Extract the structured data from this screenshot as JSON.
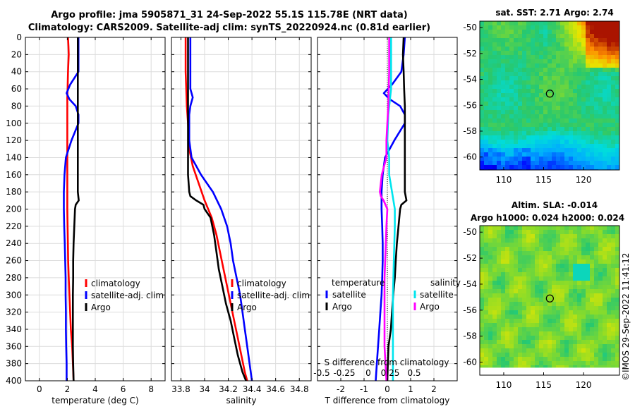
{
  "header": {
    "title_line1": "Argo profile: jma 5905871_31 24-Sep-2022 55.1S  115.78E (NRT data)",
    "title_line2": "Climatology: CARS2009. Satellite-adj clim: synTS_20220924.nc (0.81d earlier)"
  },
  "footer": {
    "credit": "©IMOS 29-Sep-2022 11:41:12"
  },
  "colors": {
    "climatology": "#ff0000",
    "satellite": "#0000ff",
    "argo": "#000000",
    "sat_salinity": "#00e5ee",
    "argo_salinity": "#ff00ff"
  },
  "depth_axis": {
    "ticks": [
      "0",
      "20",
      "40",
      "60",
      "80",
      "100",
      "120",
      "140",
      "160",
      "180",
      "200",
      "220",
      "240",
      "260",
      "280",
      "300",
      "320",
      "340",
      "360",
      "380",
      "400"
    ]
  },
  "chart_data": [
    {
      "type": "line",
      "id": "temperature",
      "xlabel": "temperature (deg C)",
      "xlim": [
        -1,
        9
      ],
      "ylim": [
        0,
        400
      ],
      "xticks": [
        "0",
        "2",
        "4",
        "6",
        "8"
      ],
      "xtick_values": [
        0,
        2,
        4,
        6,
        8
      ],
      "legend": [
        "climatology",
        "satellite-adj. clim",
        "Argo"
      ],
      "series": [
        {
          "name": "climatology",
          "color": "#ff0000",
          "depth": [
            0,
            10,
            20,
            40,
            60,
            70,
            80,
            100,
            120,
            140,
            160,
            180,
            200,
            220,
            240,
            260,
            280,
            300,
            320,
            340,
            360,
            380,
            400
          ],
          "values": [
            2.05,
            2.08,
            2.1,
            2.05,
            2.02,
            2.0,
            2.0,
            2.0,
            2.0,
            2.0,
            2.0,
            2.0,
            2.0,
            2.02,
            2.04,
            2.06,
            2.1,
            2.15,
            2.2,
            2.25,
            2.35,
            2.4,
            2.45
          ]
        },
        {
          "name": "satellite-adj. clim",
          "color": "#0000ff",
          "depth": [
            0,
            20,
            40,
            55,
            65,
            72,
            80,
            90,
            100,
            120,
            140,
            160,
            180,
            200,
            220,
            240,
            260,
            280,
            300,
            320,
            340,
            360,
            380,
            400
          ],
          "values": [
            2.8,
            2.8,
            2.8,
            2.2,
            1.95,
            2.15,
            2.6,
            2.8,
            2.8,
            2.3,
            1.9,
            1.8,
            1.75,
            1.75,
            1.78,
            1.82,
            1.85,
            1.88,
            1.88,
            1.9,
            1.9,
            1.92,
            1.95,
            1.95
          ]
        },
        {
          "name": "Argo",
          "color": "#000000",
          "depth": [
            0,
            20,
            40,
            60,
            80,
            100,
            120,
            140,
            160,
            180,
            190,
            195,
            200,
            220,
            240,
            260,
            280,
            300,
            320,
            340,
            360,
            380,
            400
          ],
          "values": [
            2.75,
            2.75,
            2.75,
            2.75,
            2.75,
            2.75,
            2.75,
            2.75,
            2.75,
            2.75,
            2.82,
            2.6,
            2.55,
            2.5,
            2.45,
            2.42,
            2.42,
            2.4,
            2.4,
            2.4,
            2.4,
            2.42,
            2.45
          ]
        }
      ]
    },
    {
      "type": "line",
      "id": "salinity",
      "xlabel": "salinity",
      "xlim": [
        33.72,
        34.9
      ],
      "ylim": [
        0,
        400
      ],
      "xticks": [
        "33.8",
        "34",
        "34.2",
        "34.4",
        "34.6",
        "34.8"
      ],
      "xtick_values": [
        33.8,
        34.0,
        34.2,
        34.4,
        34.6,
        34.8
      ],
      "legend": [
        "climatology",
        "satellite-adj. clim",
        "Argo"
      ],
      "series": [
        {
          "name": "climatology",
          "color": "#ff0000",
          "depth": [
            0,
            40,
            80,
            100,
            130,
            150,
            170,
            190,
            210,
            230,
            250,
            270,
            290,
            310,
            330,
            350,
            370,
            390,
            400
          ],
          "values": [
            33.84,
            33.84,
            33.85,
            33.86,
            33.87,
            33.9,
            33.95,
            34.0,
            34.06,
            34.1,
            34.13,
            34.16,
            34.19,
            34.22,
            34.25,
            34.28,
            34.31,
            34.34,
            34.36
          ]
        },
        {
          "name": "satellite-adj. clim",
          "color": "#0000ff",
          "depth": [
            0,
            20,
            40,
            60,
            70,
            80,
            90,
            100,
            120,
            140,
            160,
            180,
            200,
            220,
            240,
            260,
            280,
            300,
            320,
            340,
            360,
            380,
            400
          ],
          "values": [
            33.88,
            33.88,
            33.88,
            33.88,
            33.9,
            33.88,
            33.87,
            33.87,
            33.87,
            33.89,
            33.97,
            34.07,
            34.14,
            34.19,
            34.22,
            34.24,
            34.27,
            34.3,
            34.32,
            34.34,
            34.36,
            34.38,
            34.4
          ]
        },
        {
          "name": "Argo",
          "color": "#000000",
          "depth": [
            0,
            20,
            40,
            60,
            80,
            100,
            120,
            140,
            160,
            180,
            185,
            190,
            195,
            200,
            210,
            230,
            250,
            270,
            290,
            310,
            330,
            350,
            370,
            390,
            400
          ],
          "values": [
            33.86,
            33.86,
            33.86,
            33.86,
            33.86,
            33.86,
            33.86,
            33.86,
            33.86,
            33.87,
            33.88,
            33.93,
            33.99,
            34.0,
            34.05,
            34.08,
            34.1,
            34.12,
            34.15,
            34.18,
            34.22,
            34.25,
            34.28,
            34.32,
            34.35
          ]
        }
      ]
    },
    {
      "type": "line",
      "id": "difference",
      "xlabel": "T difference from climatology",
      "xlabel_top": "S difference from climatology",
      "xlim": [
        -3,
        3
      ],
      "ylim": [
        0,
        400
      ],
      "xticks": [
        "-2",
        "-1",
        "0",
        "1",
        "2"
      ],
      "xtick_values": [
        -2,
        -1,
        0,
        1,
        2
      ],
      "s_ticks": [
        "-0.5",
        "-0.25",
        "0",
        "0.25",
        "0.5"
      ],
      "s_tick_values": [
        -0.5,
        -0.25,
        0,
        0.25,
        0.5
      ],
      "legend_temperature": {
        "title": "temperature",
        "items": [
          "satellite",
          "Argo"
        ]
      },
      "legend_salinity": {
        "title": "salinity",
        "items": [
          "satellite",
          "Argo"
        ]
      },
      "series": [
        {
          "name": "T satellite",
          "color": "#0000ff",
          "depth": [
            0,
            20,
            40,
            55,
            65,
            72,
            80,
            90,
            100,
            120,
            140,
            160,
            180,
            200,
            220,
            240,
            260,
            280,
            300,
            320,
            340,
            360,
            380,
            400
          ],
          "values": [
            0.75,
            0.7,
            0.6,
            0.2,
            -0.15,
            0.1,
            0.55,
            0.75,
            0.75,
            0.3,
            -0.1,
            -0.2,
            -0.25,
            -0.25,
            -0.22,
            -0.2,
            -0.2,
            -0.22,
            -0.25,
            -0.3,
            -0.35,
            -0.4,
            -0.45,
            -0.5
          ]
        },
        {
          "name": "T Argo",
          "color": "#000000",
          "depth": [
            0,
            20,
            40,
            60,
            80,
            100,
            120,
            140,
            160,
            180,
            190,
            195,
            200,
            220,
            240,
            260,
            280,
            300,
            320,
            340,
            360,
            380,
            400
          ],
          "values": [
            0.7,
            0.67,
            0.7,
            0.72,
            0.75,
            0.75,
            0.75,
            0.75,
            0.75,
            0.75,
            0.82,
            0.6,
            0.55,
            0.48,
            0.41,
            0.36,
            0.32,
            0.25,
            0.2,
            0.15,
            0.05,
            0.02,
            0.0
          ]
        },
        {
          "name": "S satellite",
          "color": "#00e5ee",
          "depth": [
            0,
            60,
            90,
            120,
            140,
            160,
            180,
            200,
            220,
            260,
            300,
            340,
            380,
            400
          ],
          "values": [
            0.04,
            0.04,
            0.01,
            0.0,
            0.02,
            0.02,
            0.05,
            0.08,
            0.08,
            0.07,
            0.06,
            0.06,
            0.06,
            0.06
          ]
        },
        {
          "name": "S Argo",
          "color": "#ff00ff",
          "depth": [
            0,
            40,
            80,
            100,
            120,
            140,
            160,
            180,
            185,
            190,
            200,
            220,
            250,
            280,
            320,
            360,
            400
          ],
          "values": [
            0.02,
            0.02,
            0.01,
            0.0,
            -0.01,
            -0.01,
            -0.06,
            -0.08,
            -0.07,
            -0.04,
            0.0,
            -0.01,
            -0.02,
            -0.03,
            -0.03,
            -0.03,
            -0.01
          ]
        }
      ]
    },
    {
      "type": "heatmap",
      "id": "sst_map",
      "title": "sat. SST: 2.71 Argo: 2.74",
      "xticks": [
        "110",
        "115",
        "120"
      ],
      "xtick_values": [
        110,
        115,
        120
      ],
      "yticks": [
        "-50",
        "-52",
        "-54",
        "-56",
        "-58",
        "-60"
      ],
      "ytick_values": [
        -50,
        -52,
        -54,
        -56,
        -58,
        -60
      ],
      "xlim": [
        107,
        124.5
      ],
      "ylim": [
        -61,
        -49.5
      ],
      "marker": {
        "lon": 115.78,
        "lat": -55.1
      }
    },
    {
      "type": "heatmap",
      "id": "sla_map",
      "title_line1": "Altim. SLA: -0.014",
      "title_line2": "Argo h1000: 0.024 h2000: 0.024",
      "xticks": [
        "110",
        "115",
        "120"
      ],
      "xtick_values": [
        110,
        115,
        120
      ],
      "yticks": [
        "-50",
        "-52",
        "-54",
        "-56",
        "-58",
        "-60"
      ],
      "ytick_values": [
        -50,
        -52,
        -54,
        -56,
        -58,
        -60
      ],
      "xlim": [
        107,
        124.5
      ],
      "ylim": [
        -61,
        -49.5
      ],
      "marker": {
        "lon": 115.78,
        "lat": -55.1
      }
    }
  ]
}
